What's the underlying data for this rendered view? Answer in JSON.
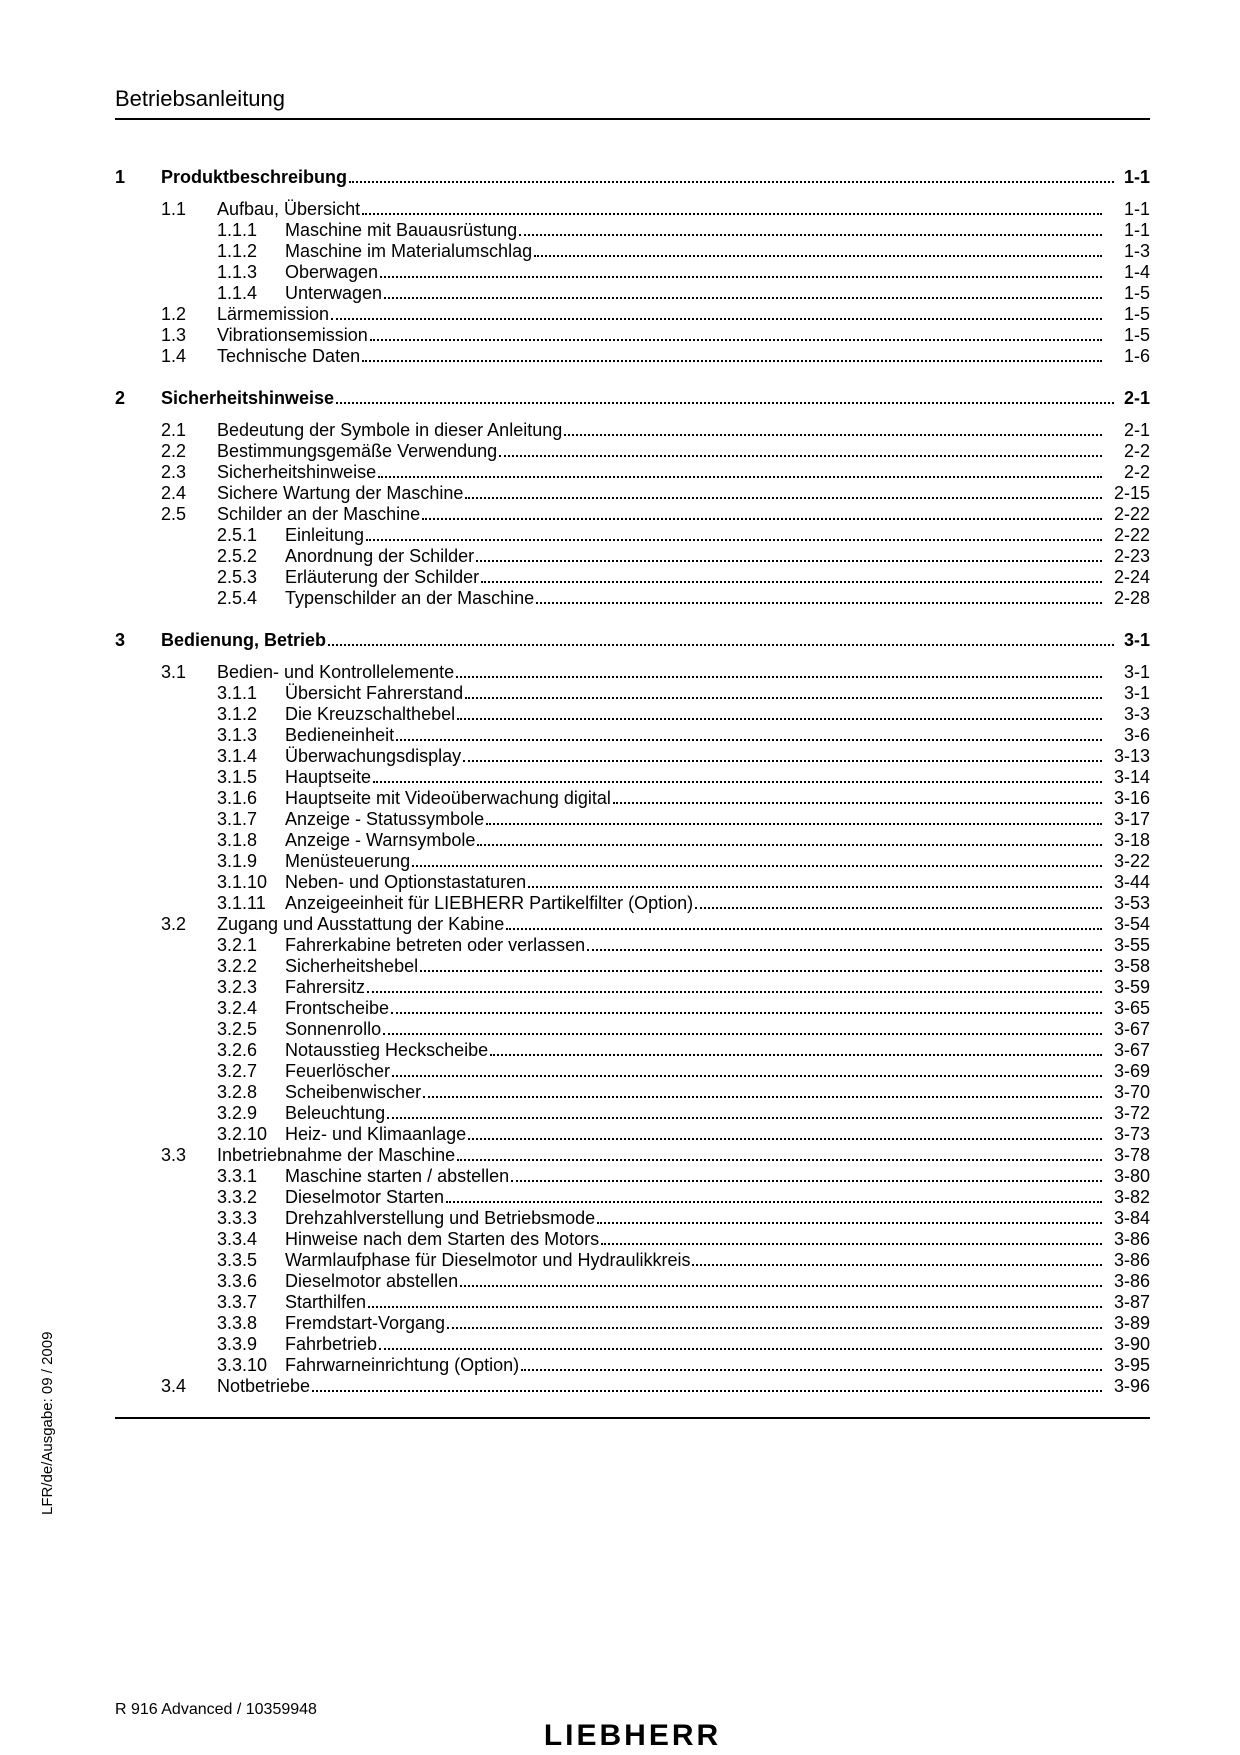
{
  "header": "Betriebsanleitung",
  "side_text": "LFR/de/Ausgabe: 09 / 2009",
  "footer_model": "R 916 Advanced / 10359948",
  "footer_logo": "LIEBHERR",
  "toc": [
    {
      "type": "chapter",
      "num": "1",
      "title": "Produktbeschreibung",
      "page": "1-1"
    },
    {
      "type": "sub1",
      "num": "1.1",
      "title": "Aufbau, Übersicht",
      "page": "1-1"
    },
    {
      "type": "sub2",
      "num": "1.1.1",
      "title": "Maschine mit Bauausrüstung",
      "page": "1-1"
    },
    {
      "type": "sub2",
      "num": "1.1.2",
      "title": "Maschine im Materialumschlag",
      "page": "1-3"
    },
    {
      "type": "sub2",
      "num": "1.1.3",
      "title": "Oberwagen",
      "page": "1-4"
    },
    {
      "type": "sub2",
      "num": "1.1.4",
      "title": "Unterwagen",
      "page": "1-5"
    },
    {
      "type": "sub1",
      "num": "1.2",
      "title": "Lärmemission",
      "page": "1-5"
    },
    {
      "type": "sub1",
      "num": "1.3",
      "title": "Vibrationsemission",
      "page": "1-5"
    },
    {
      "type": "sub1",
      "num": "1.4",
      "title": "Technische Daten",
      "page": "1-6"
    },
    {
      "type": "chapter",
      "num": "2",
      "title": "Sicherheitshinweise",
      "page": "2-1"
    },
    {
      "type": "sub1",
      "num": "2.1",
      "title": "Bedeutung der Symbole in dieser Anleitung",
      "page": "2-1"
    },
    {
      "type": "sub1",
      "num": "2.2",
      "title": "Bestimmungsgemäße Verwendung",
      "page": "2-2"
    },
    {
      "type": "sub1",
      "num": "2.3",
      "title": "Sicherheitshinweise",
      "page": "2-2"
    },
    {
      "type": "sub1",
      "num": "2.4",
      "title": "Sichere Wartung der Maschine",
      "page": "2-15"
    },
    {
      "type": "sub1",
      "num": "2.5",
      "title": "Schilder an der Maschine",
      "page": "2-22"
    },
    {
      "type": "sub2",
      "num": "2.5.1",
      "title": "Einleitung",
      "page": "2-22"
    },
    {
      "type": "sub2",
      "num": "2.5.2",
      "title": "Anordnung der Schilder",
      "page": "2-23"
    },
    {
      "type": "sub2",
      "num": "2.5.3",
      "title": "Erläuterung der Schilder",
      "page": "2-24"
    },
    {
      "type": "sub2",
      "num": "2.5.4",
      "title": "Typenschilder an der Maschine",
      "page": "2-28"
    },
    {
      "type": "chapter",
      "num": "3",
      "title": "Bedienung, Betrieb",
      "page": "3-1"
    },
    {
      "type": "sub1",
      "num": "3.1",
      "title": "Bedien- und Kontrollelemente",
      "page": "3-1"
    },
    {
      "type": "sub2",
      "num": "3.1.1",
      "title": "Übersicht Fahrerstand",
      "page": "3-1"
    },
    {
      "type": "sub2",
      "num": "3.1.2",
      "title": "Die Kreuzschalthebel",
      "page": "3-3"
    },
    {
      "type": "sub2",
      "num": "3.1.3",
      "title": "Bedieneinheit",
      "page": "3-6"
    },
    {
      "type": "sub2",
      "num": "3.1.4",
      "title": "Überwachungsdisplay",
      "page": "3-13"
    },
    {
      "type": "sub2",
      "num": "3.1.5",
      "title": "Hauptseite",
      "page": "3-14"
    },
    {
      "type": "sub2",
      "num": "3.1.6",
      "title": "Hauptseite mit Videoüberwachung digital",
      "page": "3-16"
    },
    {
      "type": "sub2",
      "num": "3.1.7",
      "title": "Anzeige - Statussymbole",
      "page": "3-17"
    },
    {
      "type": "sub2",
      "num": "3.1.8",
      "title": "Anzeige - Warnsymbole",
      "page": "3-18"
    },
    {
      "type": "sub2",
      "num": "3.1.9",
      "title": "Menüsteuerung",
      "page": "3-22"
    },
    {
      "type": "sub2",
      "num": "3.1.10",
      "title": "Neben- und Optionstastaturen",
      "page": "3-44"
    },
    {
      "type": "sub2",
      "num": "3.1.11",
      "title": "Anzeigeeinheit für LIEBHERR Partikelfilter (Option)",
      "page": "3-53"
    },
    {
      "type": "sub1",
      "num": "3.2",
      "title": "Zugang und Ausstattung der Kabine",
      "page": "3-54"
    },
    {
      "type": "sub2",
      "num": "3.2.1",
      "title": "Fahrerkabine betreten oder verlassen",
      "page": "3-55"
    },
    {
      "type": "sub2",
      "num": "3.2.2",
      "title": "Sicherheitshebel",
      "page": "3-58"
    },
    {
      "type": "sub2",
      "num": "3.2.3",
      "title": "Fahrersitz",
      "page": "3-59"
    },
    {
      "type": "sub2",
      "num": "3.2.4",
      "title": "Frontscheibe",
      "page": "3-65"
    },
    {
      "type": "sub2",
      "num": "3.2.5",
      "title": "Sonnenrollo",
      "page": "3-67"
    },
    {
      "type": "sub2",
      "num": "3.2.6",
      "title": "Notausstieg Heckscheibe",
      "page": "3-67"
    },
    {
      "type": "sub2",
      "num": "3.2.7",
      "title": "Feuerlöscher",
      "page": "3-69"
    },
    {
      "type": "sub2",
      "num": "3.2.8",
      "title": "Scheibenwischer",
      "page": "3-70"
    },
    {
      "type": "sub2",
      "num": "3.2.9",
      "title": "Beleuchtung",
      "page": "3-72"
    },
    {
      "type": "sub2",
      "num": "3.2.10",
      "title": "Heiz- und Klimaanlage",
      "page": "3-73"
    },
    {
      "type": "sub1",
      "num": "3.3",
      "title": "Inbetriebnahme der Maschine",
      "page": "3-78"
    },
    {
      "type": "sub2",
      "num": "3.3.1",
      "title": "Maschine starten / abstellen",
      "page": "3-80"
    },
    {
      "type": "sub2",
      "num": "3.3.2",
      "title": "Dieselmotor Starten",
      "page": "3-82"
    },
    {
      "type": "sub2",
      "num": "3.3.3",
      "title": "Drehzahlverstellung und Betriebsmode",
      "page": "3-84"
    },
    {
      "type": "sub2",
      "num": "3.3.4",
      "title": "Hinweise nach dem Starten des Motors",
      "page": "3-86"
    },
    {
      "type": "sub2",
      "num": "3.3.5",
      "title": "Warmlaufphase für Dieselmotor und Hydraulikkreis",
      "page": "3-86"
    },
    {
      "type": "sub2",
      "num": "3.3.6",
      "title": "Dieselmotor abstellen",
      "page": "3-86"
    },
    {
      "type": "sub2",
      "num": "3.3.7",
      "title": "Starthilfen",
      "page": "3-87"
    },
    {
      "type": "sub2",
      "num": "3.3.8",
      "title": "Fremdstart-Vorgang",
      "page": "3-89"
    },
    {
      "type": "sub2",
      "num": "3.3.9",
      "title": "Fahrbetrieb",
      "page": "3-90"
    },
    {
      "type": "sub2",
      "num": "3.3.10",
      "title": "Fahrwarneinrichtung (Option)",
      "page": "3-95"
    },
    {
      "type": "sub1",
      "num": "3.4",
      "title": "Notbetriebe",
      "page": "3-96"
    }
  ]
}
